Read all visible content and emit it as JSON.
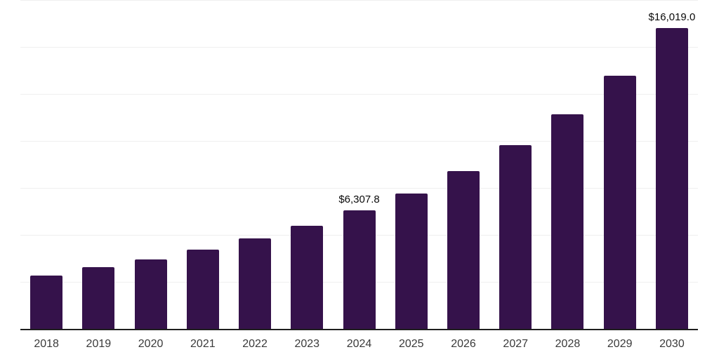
{
  "chart_data": {
    "type": "bar",
    "title": "",
    "xlabel": "",
    "ylabel": "",
    "categories": [
      "2018",
      "2019",
      "2020",
      "2021",
      "2022",
      "2023",
      "2024",
      "2025",
      "2026",
      "2027",
      "2028",
      "2029",
      "2030"
    ],
    "values": [
      2830,
      3280,
      3690,
      4210,
      4810,
      5480,
      6307.8,
      7200,
      8390,
      9770,
      11410,
      13460,
      16019
    ],
    "data_labels": {
      "2024": "$6,307.8",
      "2030": "$16,019.0"
    },
    "ylim": [
      0,
      17500
    ],
    "gridline_step": 2500,
    "grid": true,
    "legend": false,
    "colors": {
      "bar": "#35124B",
      "gridline": "#efefef",
      "axis": "#1e1e1e",
      "tick_label": "#3a3a3a",
      "data_label": "#0a0a0a",
      "background": "#ffffff"
    }
  }
}
